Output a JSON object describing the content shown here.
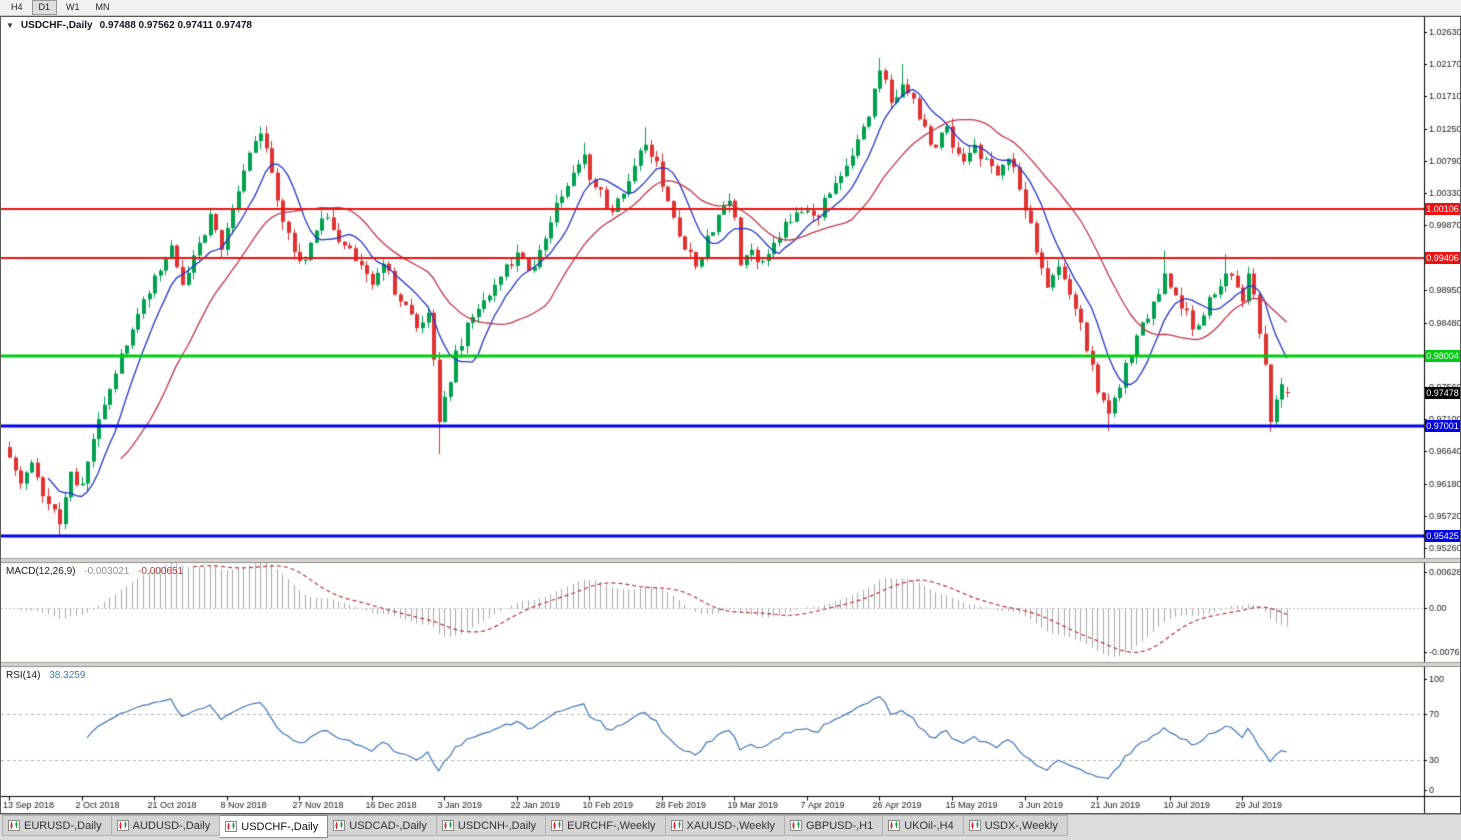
{
  "toolbar": {
    "timeframes": [
      {
        "label": "H4",
        "active": false
      },
      {
        "label": "D1",
        "active": true
      },
      {
        "label": "W1",
        "active": false
      },
      {
        "label": "MN",
        "active": false
      }
    ]
  },
  "header": {
    "dropdown_glyph": "▼",
    "symbol": "USDCHF-,Daily",
    "ohlc": "0.97488 0.97562 0.97411 0.97478"
  },
  "indicators": {
    "macd": {
      "label": "MACD(12,26,9)",
      "main_value": "-0.003021",
      "signal_value": "-0.000651"
    },
    "rsi": {
      "label": "RSI(14)",
      "value": "38.3259"
    }
  },
  "price_lines": [
    {
      "label": "1.00106",
      "value": 1.00106,
      "color": "#ee1111",
      "width": 2
    },
    {
      "label": "0.99406",
      "value": 0.99406,
      "color": "#ee1111",
      "width": 2
    },
    {
      "label": "0.98004",
      "value": 0.98004,
      "color": "#00cc11",
      "width": 3
    },
    {
      "label": "0.97001",
      "value": 0.97001,
      "color": "#0000e6",
      "width": 3
    },
    {
      "label": "0.95425",
      "value": 0.95425,
      "color": "#0000e6",
      "width": 3
    }
  ],
  "current_price": {
    "label": "0.97478",
    "value": 0.97478,
    "color": "#000000"
  },
  "tabs": [
    {
      "name": "eurusd-daily",
      "label": "EURUSD-,Daily",
      "active": false
    },
    {
      "name": "audusd-daily",
      "label": "AUDUSD-,Daily",
      "active": false
    },
    {
      "name": "usdchf-daily",
      "label": "USDCHF-,Daily",
      "active": true
    },
    {
      "name": "usdcad-daily",
      "label": "USDCAD-,Daily",
      "active": false
    },
    {
      "name": "usdcnh-daily",
      "label": "USDCNH-,Daily",
      "active": false
    },
    {
      "name": "eurchf-weekly",
      "label": "EURCHF-,Weekly",
      "active": false
    },
    {
      "name": "xauusd-weekly",
      "label": "XAUUSD-,Weekly",
      "active": false
    },
    {
      "name": "gbpusd-h1",
      "label": "GBPUSD-,H1",
      "active": false
    },
    {
      "name": "ukoil-h4",
      "label": "UKOil-,H4",
      "active": false
    },
    {
      "name": "usdx-weekly",
      "label": "USDX-,Weekly",
      "active": false
    }
  ],
  "colors": {
    "up": "#00a14e",
    "down": "#e03232",
    "ma_fast": "#2437c8",
    "ma_slow": "#c23a4e",
    "macd_hist": "#a8a8a8",
    "macd_signal": "#b53838",
    "rsi_line": "#4079b5",
    "levels": "#b4b4b4",
    "axis_text": "#1a1a1a"
  },
  "chart_data": {
    "type": "candlestick",
    "title": "USDCHF-,Daily",
    "ohlc_last_bar": {
      "open": 0.97488,
      "high": 0.97562,
      "low": 0.97411,
      "close": 0.97478
    },
    "bars": 230,
    "bars_per_label": 13,
    "first_bar_x": 8,
    "bar_spacing": 5.58,
    "x_labels": [
      "13 Sep 2018",
      "2 Oct 2018",
      "21 Oct 2018",
      "8 Nov 2018",
      "27 Nov 2018",
      "16 Dec 2018",
      "3 Jan 2019",
      "22 Jan 2019",
      "10 Feb 2019",
      "28 Feb 2019",
      "19 Mar 2019",
      "7 Apr 2019",
      "26 Apr 2019",
      "15 May 2019",
      "3 Jun 2019",
      "21 Jun 2019",
      "10 Jul 2019",
      "29 Jul 2019"
    ],
    "y_ticks": [
      "1.02630",
      "1.02170",
      "1.01710",
      "1.01250",
      "1.00790",
      "1.00330",
      "0.99870",
      "0.98950",
      "0.98480",
      "0.97560",
      "0.97100",
      "0.96640",
      "0.96180",
      "0.95720",
      "0.95260"
    ],
    "horizontal_levels": [
      1.00106,
      0.99406,
      0.98004,
      0.97001,
      0.95425
    ],
    "price_anchors": [
      [
        0,
        0.9655
      ],
      [
        2,
        0.9618
      ],
      [
        4,
        0.9648
      ],
      [
        6,
        0.96
      ],
      [
        9,
        0.956
      ],
      [
        11,
        0.9635
      ],
      [
        13,
        0.9618
      ],
      [
        16,
        0.971
      ],
      [
        19,
        0.9775
      ],
      [
        22,
        0.9838
      ],
      [
        26,
        0.9915
      ],
      [
        29,
        0.9958
      ],
      [
        31,
        0.9902
      ],
      [
        34,
        0.9962
      ],
      [
        36,
        1.0003
      ],
      [
        38,
        0.9952
      ],
      [
        40,
        1.001
      ],
      [
        42,
        1.0065
      ],
      [
        45,
        1.0118
      ],
      [
        47,
        1.0062
      ],
      [
        49,
        0.9992
      ],
      [
        52,
        0.9936
      ],
      [
        54,
        0.9962
      ],
      [
        57,
        0.9998
      ],
      [
        60,
        0.9958
      ],
      [
        63,
        0.993
      ],
      [
        65,
        0.9902
      ],
      [
        67,
        0.9932
      ],
      [
        70,
        0.9878
      ],
      [
        73,
        0.984
      ],
      [
        75,
        0.9862
      ],
      [
        76,
        0.9795
      ],
      [
        77,
        0.9706
      ],
      [
        78,
        0.9742
      ],
      [
        80,
        0.9808
      ],
      [
        83,
        0.9856
      ],
      [
        87,
        0.9902
      ],
      [
        91,
        0.9948
      ],
      [
        93,
        0.9922
      ],
      [
        96,
        0.9968
      ],
      [
        99,
        1.0028
      ],
      [
        101,
        1.0062
      ],
      [
        103,
        1.0088
      ],
      [
        104,
        1.0052
      ],
      [
        106,
        1.0038
      ],
      [
        108,
        1.0006
      ],
      [
        110,
        1.0032
      ],
      [
        112,
        1.0072
      ],
      [
        114,
        1.0102
      ],
      [
        116,
        1.0078
      ],
      [
        117,
        1.0042
      ],
      [
        119,
        0.9998
      ],
      [
        121,
        0.9952
      ],
      [
        123,
        0.9928
      ],
      [
        125,
        0.9972
      ],
      [
        127,
        1.0002
      ],
      [
        129,
        1.0022
      ],
      [
        130,
        0.9998
      ],
      [
        131,
        0.993
      ],
      [
        133,
        0.9952
      ],
      [
        135,
        0.9936
      ],
      [
        137,
        0.9962
      ],
      [
        140,
        0.9992
      ],
      [
        143,
        1.0008
      ],
      [
        145,
        0.9998
      ],
      [
        147,
        1.0032
      ],
      [
        150,
        1.0072
      ],
      [
        153,
        1.0128
      ],
      [
        155,
        1.0182
      ],
      [
        156,
        1.0208
      ],
      [
        158,
        1.0162
      ],
      [
        160,
        1.0188
      ],
      [
        162,
        1.0168
      ],
      [
        164,
        1.0128
      ],
      [
        166,
        1.0098
      ],
      [
        168,
        1.0128
      ],
      [
        169,
        1.0098
      ],
      [
        171,
        1.0078
      ],
      [
        173,
        1.0102
      ],
      [
        175,
        1.0082
      ],
      [
        177,
        1.0058
      ],
      [
        179,
        1.0082
      ],
      [
        181,
        1.0038
      ],
      [
        182,
        1.0008
      ],
      [
        184,
        0.9948
      ],
      [
        186,
        0.9898
      ],
      [
        188,
        0.9928
      ],
      [
        190,
        0.9888
      ],
      [
        192,
        0.9848
      ],
      [
        194,
        0.9788
      ],
      [
        195,
        0.9748
      ],
      [
        197,
        0.9718
      ],
      [
        199,
        0.9755
      ],
      [
        201,
        0.98
      ],
      [
        203,
        0.9848
      ],
      [
        205,
        0.9878
      ],
      [
        207,
        0.9918
      ],
      [
        208,
        0.9898
      ],
      [
        210,
        0.9868
      ],
      [
        212,
        0.9838
      ],
      [
        214,
        0.9858
      ],
      [
        216,
        0.9888
      ],
      [
        218,
        0.9918
      ],
      [
        220,
        0.9898
      ],
      [
        221,
        0.9878
      ],
      [
        222,
        0.9918
      ],
      [
        223,
        0.9888
      ],
      [
        224,
        0.9832
      ],
      [
        225,
        0.9788
      ],
      [
        226,
        0.9706
      ],
      [
        227,
        0.9738
      ],
      [
        228,
        0.976
      ],
      [
        229,
        0.97478
      ]
    ],
    "wick_overrides": [
      {
        "bar": 9,
        "low": 0.9542
      },
      {
        "bar": 45,
        "high": 1.0128
      },
      {
        "bar": 77,
        "low": 0.966
      },
      {
        "bar": 103,
        "high": 1.0105
      },
      {
        "bar": 114,
        "high": 1.0127
      },
      {
        "bar": 156,
        "high": 1.0226
      },
      {
        "bar": 160,
        "high": 1.0217
      },
      {
        "bar": 197,
        "low": 0.9693
      },
      {
        "bar": 207,
        "high": 0.9951
      },
      {
        "bar": 218,
        "high": 0.9946
      },
      {
        "bar": 226,
        "low": 0.9692
      },
      {
        "bar": 229,
        "open": 0.97488,
        "high": 0.97562,
        "low": 0.97411,
        "close": 0.97478
      }
    ],
    "noise_seed": 11,
    "noise_amp": 0.0013,
    "wick_amp": 0.0012,
    "ma_fast_period": 8,
    "ma_slow_period": 21,
    "macd": {
      "fast": 12,
      "slow": 26,
      "signal": 9,
      "ticks": [
        "0.006286",
        "0.00",
        "-0.00762"
      ],
      "range_max": 0.0078,
      "range_min": -0.0092
    },
    "rsi": {
      "period": 14,
      "ticks": [
        "100",
        "70",
        "30",
        "0"
      ],
      "levels": [
        70,
        30
      ],
      "last_value": 38.3259
    }
  }
}
